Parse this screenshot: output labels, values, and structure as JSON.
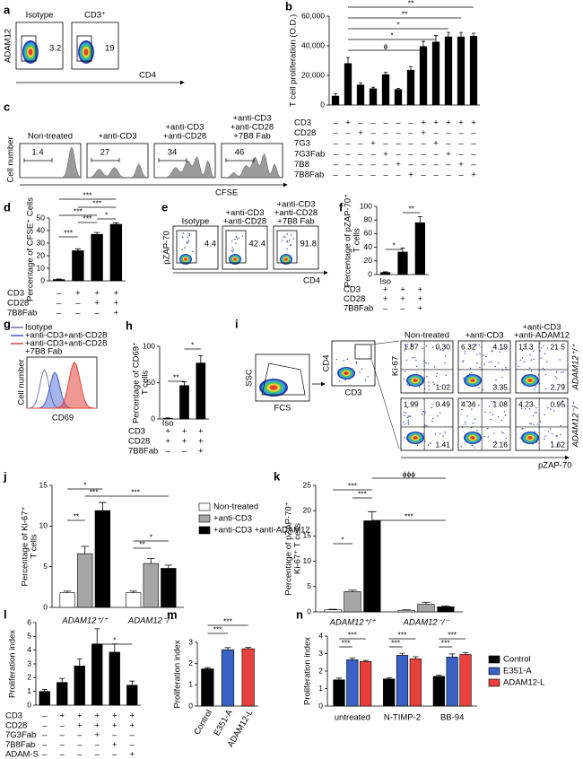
{
  "flow_panels": {
    "a": {
      "panel": "a",
      "ylabel": "ADAM12",
      "xlabel": "CD4",
      "plots": [
        {
          "title": "Isotype",
          "value": "3.2"
        },
        {
          "title": "CD3⁺",
          "value": "19"
        }
      ]
    },
    "c": {
      "panel": "c",
      "ylabel": "Cell number",
      "xlabel": "CFSE",
      "plots": [
        {
          "title": [
            "Non-treated"
          ],
          "value": "1.4"
        },
        {
          "title": [
            "+anti-CD3"
          ],
          "value": "27"
        },
        {
          "title": [
            "+anti-CD3",
            "+anti-CD28"
          ],
          "value": "34"
        },
        {
          "title": [
            "+anti-CD3",
            "+anti-CD28",
            "+7B8 Fab"
          ],
          "value": "46"
        }
      ]
    },
    "e": {
      "panel": "e",
      "ylabel": "pZAP-70",
      "xlabel": "CD4",
      "plots": [
        {
          "title": [
            "Isotype"
          ],
          "value": "4.4"
        },
        {
          "title": [
            "+anti-CD3",
            "+anti-CD28"
          ],
          "value": "42.4"
        },
        {
          "title": [
            "+anti-CD3",
            "+anti-CD28",
            "+7B8 Fab"
          ],
          "value": "91.8"
        }
      ]
    },
    "g": {
      "panel": "g",
      "ylabel": "Cell number",
      "xlabel": "CD69",
      "legend": [
        {
          "lines": [
            "Isotype"
          ],
          "color": "#7f6fa8"
        },
        {
          "lines": [
            "+anti-CD3+anti-CD28"
          ],
          "color": "#3b5bd0"
        },
        {
          "lines": [
            "+anti-CD3+anti-CD28",
            "+7B8 Fab"
          ],
          "color": "#e0453a"
        }
      ]
    },
    "i": {
      "panel": "i",
      "gating": [
        {
          "ylabel": "SSC",
          "xlabel": "FCS"
        },
        {
          "ylabel": "CD4",
          "xlabel": "CD3"
        }
      ],
      "columns": [
        [
          "Non-treated"
        ],
        [
          "+anti-CD3"
        ],
        [
          "+anti-CD3",
          "+anti-ADAM12"
        ]
      ],
      "ylabel": "Ki-67",
      "xlabel": "pZAP-70",
      "rows": [
        {
          "label": "ADAM12⁺/⁺",
          "plots": [
            [
              "1.87",
              "0.30",
              "1.02"
            ],
            [
              "6.32",
              "4.19",
              "3.35"
            ],
            [
              "13.3",
              "21.5",
              "2.79"
            ]
          ]
        },
        {
          "label": "ADAM12⁻/⁻",
          "plots": [
            [
              "1.99",
              "0.49",
              "1.41"
            ],
            [
              "4.36",
              "1.08",
              "2.16"
            ],
            [
              "4.23",
              "0.95",
              "1.62"
            ]
          ]
        }
      ]
    }
  },
  "chart_data": [
    {
      "type": "bar",
      "panel": "b",
      "ylabel": [
        "T cell proliferation (O.D.)"
      ],
      "ylim": [
        0,
        60000
      ],
      "yticks": [
        0,
        {
          "value": 20000,
          "label": "20,000"
        },
        {
          "value": 40000,
          "label": "40,000"
        },
        {
          "value": 60000,
          "label": "60,000"
        }
      ],
      "values": [
        6000,
        28000,
        13500,
        11000,
        20500,
        10500,
        23500,
        39500,
        42500,
        46000,
        46000,
        46500
      ],
      "errors": [
        1500,
        4000,
        1500,
        1000,
        1500,
        800,
        2500,
        3500,
        4500,
        3000,
        3000,
        2000
      ],
      "color": "#000000",
      "conditions": [
        {
          "name": "CD3",
          "signs": [
            "–",
            "+",
            "–",
            "–",
            "–",
            "–",
            "–",
            "+",
            "+",
            "+",
            "+",
            "+"
          ]
        },
        {
          "name": "CD28",
          "signs": [
            "–",
            "–",
            "+",
            "–",
            "–",
            "–",
            "–",
            "+",
            "–",
            "–",
            "–",
            "–"
          ]
        },
        {
          "name": "7G3",
          "signs": [
            "–",
            "–",
            "–",
            "+",
            "–",
            "–",
            "–",
            "–",
            "+",
            "–",
            "–",
            "–"
          ]
        },
        {
          "name": "7G3Fab",
          "signs": [
            "–",
            "–",
            "–",
            "–",
            "+",
            "–",
            "–",
            "–",
            "–",
            "+",
            "–",
            "–"
          ]
        },
        {
          "name": "7B8",
          "signs": [
            "–",
            "–",
            "–",
            "–",
            "–",
            "+",
            "–",
            "–",
            "–",
            "–",
            "+",
            "–"
          ]
        },
        {
          "name": "7B8Fab",
          "signs": [
            "–",
            "–",
            "–",
            "–",
            "–",
            "–",
            "+",
            "–",
            "–",
            "–",
            "–",
            "+"
          ]
        }
      ],
      "significance": [
        "**",
        "**",
        "*",
        "*",
        "ϕ"
      ]
    },
    {
      "type": "bar",
      "panel": "d",
      "ylabel": [
        "Percentage of CFSE⁺ Cells"
      ],
      "ylim": [
        0,
        50
      ],
      "yticks": [
        0,
        10,
        20,
        30,
        40,
        50
      ],
      "values": [
        1,
        24,
        37,
        45
      ],
      "errors": [
        0.4,
        1.5,
        1.5,
        1.2
      ],
      "color": "#000000",
      "conditions": [
        {
          "name": "CD3",
          "signs": [
            "–",
            "+",
            "+",
            "+"
          ]
        },
        {
          "name": "CD28",
          "signs": [
            "–",
            "–",
            "+",
            "+"
          ]
        },
        {
          "name": "7B8Fab",
          "signs": [
            "–",
            "–",
            "–",
            "+"
          ]
        }
      ],
      "significance": [
        "***",
        "***",
        "***",
        "***",
        "*",
        "***"
      ]
    },
    {
      "type": "bar",
      "panel": "f",
      "ylabel": [
        "Percentage of pZAP-70⁺",
        "T cells"
      ],
      "ylim": [
        0,
        100
      ],
      "yticks": [
        0,
        20,
        40,
        60,
        80,
        100
      ],
      "values": [
        3,
        33,
        76
      ],
      "errors": [
        1,
        6,
        9
      ],
      "color": "#000000",
      "iso_label": "Iso",
      "conditions": [
        {
          "name": "CD3",
          "signs": [
            "+",
            "+",
            "+"
          ]
        },
        {
          "name": "CD28",
          "signs": [
            "+",
            "+",
            "+"
          ]
        },
        {
          "name": "7B8Fab",
          "signs": [
            "–",
            "–",
            "+"
          ]
        }
      ],
      "significance": [
        "*",
        "**"
      ]
    },
    {
      "type": "bar",
      "panel": "h",
      "ylabel": [
        "Percentage of CD69⁺",
        "T cells"
      ],
      "ylim": [
        0,
        100
      ],
      "yticks": [
        0,
        50,
        100
      ],
      "values": [
        1,
        46,
        77
      ],
      "errors": [
        0.5,
        5,
        10
      ],
      "color": "#000000",
      "iso_label": "Iso",
      "conditions": [
        {
          "name": "CD3",
          "signs": [
            "+",
            "+",
            "+"
          ]
        },
        {
          "name": "CD28",
          "signs": [
            "+",
            "+",
            "+"
          ]
        },
        {
          "name": "7B8Fab",
          "signs": [
            "–",
            "–",
            "+"
          ]
        }
      ],
      "significance": [
        "**",
        "*"
      ]
    },
    {
      "type": "bar",
      "panel": "j",
      "ylabel": [
        "Percentage of Ki-67⁺",
        "T cells"
      ],
      "ylim": [
        0,
        15
      ],
      "yticks": [
        0,
        5,
        10,
        15
      ],
      "categories": [
        "ADAM12⁺/⁺",
        "ADAM12⁻/⁻"
      ],
      "legend": "right",
      "series": [
        {
          "name": "Non-treated",
          "color": "#ffffff",
          "values": [
            1.8,
            1.8
          ],
          "errors": [
            0.2,
            0.2
          ]
        },
        {
          "name": "+anti-CD3",
          "color": "#a6a6a6",
          "values": [
            6.6,
            5.4
          ],
          "errors": [
            0.9,
            0.6
          ]
        },
        {
          "name": "+anti-CD3 +anti-ADAM12",
          "color": "#000000",
          "values": [
            11.9,
            4.8
          ],
          "errors": [
            1.0,
            0.4
          ]
        }
      ],
      "significance": [
        "*",
        "***",
        "***",
        "**",
        "*",
        "**"
      ]
    },
    {
      "type": "bar",
      "panel": "k",
      "ylabel": [
        "Percentage of pZAP-70⁺",
        "Ki-67⁺ T cells"
      ],
      "ylim": [
        0,
        25
      ],
      "yticks": [
        0,
        5,
        10,
        15,
        20,
        25
      ],
      "categories": [
        "ADAM12⁺/⁺",
        "ADAM12⁻/⁻"
      ],
      "series": [
        {
          "name": "Non-treated",
          "color": "#ffffff",
          "values": [
            0.4,
            0.3
          ],
          "errors": [
            0.1,
            0.1
          ]
        },
        {
          "name": "+anti-CD3",
          "color": "#a6a6a6",
          "values": [
            4,
            1.5
          ],
          "errors": [
            0.3,
            0.4
          ]
        },
        {
          "name": "+anti-CD3 +anti-ADAM12",
          "color": "#000000",
          "values": [
            18,
            1.0
          ],
          "errors": [
            1.8,
            0.2
          ]
        }
      ],
      "significance": [
        "ϕϕϕ",
        "***",
        "***",
        "***",
        "*"
      ]
    },
    {
      "type": "bar",
      "panel": "l",
      "ylabel": [
        "Proliferation index"
      ],
      "ylim": [
        0,
        6
      ],
      "yticks": [
        0,
        1,
        2,
        3,
        4,
        5,
        6
      ],
      "values": [
        1.0,
        1.65,
        2.85,
        4.45,
        3.85,
        1.45
      ],
      "errors": [
        0.15,
        0.3,
        0.5,
        1.1,
        0.6,
        0.3
      ],
      "color": "#000000",
      "conditions": [
        {
          "name": "CD3",
          "signs": [
            "–",
            "+",
            "+",
            "+",
            "+",
            "+"
          ]
        },
        {
          "name": "CD28",
          "signs": [
            "–",
            "–",
            "+",
            "+",
            "+",
            "+"
          ]
        },
        {
          "name": "7G3Fab",
          "signs": [
            "–",
            "–",
            "–",
            "+",
            "–",
            "–"
          ]
        },
        {
          "name": "7B8Fab",
          "signs": [
            "–",
            "–",
            "–",
            "–",
            "+",
            "–"
          ]
        },
        {
          "name": "ADAM-S",
          "signs": [
            "–",
            "–",
            "–",
            "–",
            "–",
            "+"
          ]
        }
      ],
      "significance": [
        "*"
      ]
    },
    {
      "type": "bar",
      "panel": "m",
      "ylabel": [
        "Proliferation index"
      ],
      "ylim": [
        0,
        3
      ],
      "yticks": [
        0,
        1,
        2,
        3
      ],
      "categories": [
        "Control",
        "E351-A",
        "ADAM12-L"
      ],
      "values": [
        1.75,
        2.65,
        2.7
      ],
      "errors": [
        0.06,
        0.1,
        0.06
      ],
      "colors": [
        "#000000",
        "#3a62c4",
        "#e8403a"
      ],
      "significance": [
        "***",
        "***"
      ]
    },
    {
      "type": "bar",
      "panel": "n",
      "ylabel": [
        "Proliferation index"
      ],
      "ylim": [
        0,
        4
      ],
      "yticks": [
        0,
        1,
        2,
        3,
        4
      ],
      "categories": [
        "untreated",
        "N-TIMP-2",
        "BB-94"
      ],
      "legend": "right",
      "series": [
        {
          "name": "Control",
          "color": "#000000",
          "values": [
            1.5,
            1.55,
            1.7
          ],
          "errors": [
            0.1,
            0.07,
            0.07
          ]
        },
        {
          "name": "E351-A",
          "color": "#3a62c4",
          "values": [
            2.65,
            2.9,
            2.8
          ],
          "errors": [
            0.1,
            0.12,
            0.18
          ]
        },
        {
          "name": "ADAM12-L",
          "color": "#e8403a",
          "values": [
            2.55,
            2.7,
            2.95
          ],
          "errors": [
            0.06,
            0.12,
            0.1
          ]
        }
      ],
      "significance": [
        "***",
        "***",
        "***",
        "***",
        "***",
        "***"
      ]
    }
  ]
}
